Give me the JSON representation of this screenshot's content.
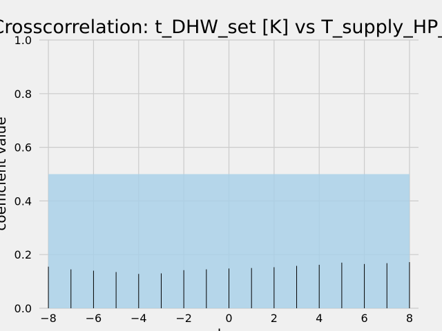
{
  "chart_data": {
    "type": "bar",
    "title": "Crosscorrelation: t_DHW_set [K] vs T_supply_HP_in",
    "xlabel": "lag",
    "ylabel": "coefficient value",
    "xlim": [
      -8.4,
      8.4
    ],
    "ylim": [
      0,
      1.0
    ],
    "xticks": [
      -8,
      -6,
      -4,
      -2,
      0,
      2,
      4,
      6,
      8
    ],
    "xtick_labels": [
      "−8",
      "−6",
      "−4",
      "−2",
      "0",
      "2",
      "4",
      "6",
      "8"
    ],
    "yticks": [
      0.0,
      0.2,
      0.4,
      0.6,
      0.8,
      1.0
    ],
    "ytick_labels": [
      "0.0",
      "0.2",
      "0.4",
      "0.6",
      "0.8",
      "1.0"
    ],
    "grid": true,
    "confidence_band": {
      "x_range": [
        -8,
        8
      ],
      "y_range": [
        0,
        0.5
      ],
      "color": "#a6cfe8"
    },
    "lags": [
      -8,
      -7,
      -6,
      -5,
      -4,
      -3,
      -2,
      -1,
      0,
      1,
      2,
      3,
      4,
      5,
      6,
      7,
      8
    ],
    "values": [
      0.155,
      0.145,
      0.14,
      0.135,
      0.128,
      0.13,
      0.142,
      0.145,
      0.148,
      0.15,
      0.153,
      0.158,
      0.162,
      0.17,
      0.165,
      0.168,
      0.172
    ],
    "bar_color": "#000000"
  }
}
